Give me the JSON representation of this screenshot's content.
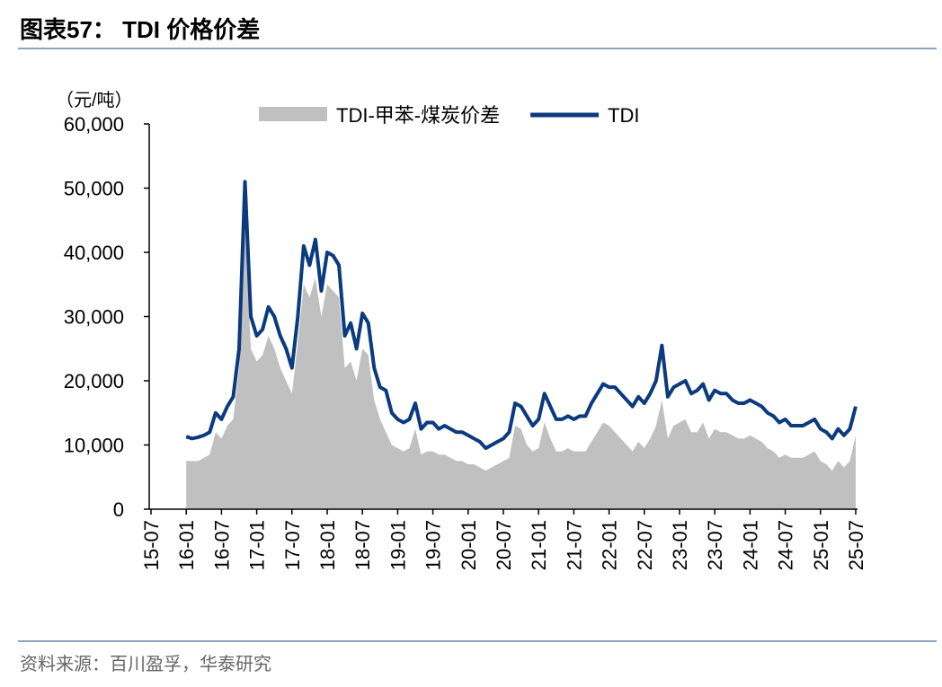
{
  "header": {
    "title": "图表57： TDI 价格价差"
  },
  "chart_data": {
    "type": "area-line",
    "y_label": "（元/吨）",
    "categories": [
      "15-07",
      null,
      null,
      null,
      null,
      null,
      "16-01",
      null,
      null,
      null,
      null,
      null,
      "16-07",
      null,
      null,
      null,
      null,
      null,
      "17-01",
      null,
      null,
      null,
      null,
      null,
      "17-07",
      null,
      null,
      null,
      null,
      null,
      "18-01",
      null,
      null,
      null,
      null,
      null,
      "18-07",
      null,
      null,
      null,
      null,
      null,
      "19-01",
      null,
      null,
      null,
      null,
      null,
      "19-07",
      null,
      null,
      null,
      null,
      null,
      "20-01",
      null,
      null,
      null,
      null,
      null,
      "20-07",
      null,
      null,
      null,
      null,
      null,
      "21-01",
      null,
      null,
      null,
      null,
      null,
      "21-07",
      null,
      null,
      null,
      null,
      null,
      "22-01",
      null,
      null,
      null,
      null,
      null,
      "22-07",
      null,
      null,
      null,
      null,
      null,
      "23-01",
      null,
      null,
      null,
      null,
      null,
      "23-07",
      null,
      null,
      null,
      null,
      null,
      "24-01",
      null,
      null,
      null,
      null,
      null,
      "24-07",
      null,
      null,
      null,
      null,
      null,
      "25-01",
      null,
      null,
      null,
      null,
      null,
      "25-07"
    ],
    "series": [
      {
        "name": "TDI-甲苯-煤炭价差",
        "color": "#c0c0c0",
        "kind": "area",
        "values": [
          null,
          null,
          null,
          null,
          null,
          null,
          7500,
          7500,
          7500,
          8000,
          8500,
          12000,
          11000,
          13000,
          14000,
          22000,
          45000,
          25000,
          23000,
          24000,
          27000,
          25000,
          22000,
          20000,
          18000,
          26000,
          35000,
          33000,
          36000,
          30000,
          35000,
          34000,
          33000,
          22000,
          23000,
          20000,
          25000,
          24000,
          17000,
          14000,
          12000,
          10000,
          9500,
          9000,
          9500,
          12500,
          8500,
          9000,
          9000,
          8500,
          8500,
          8000,
          7500,
          7500,
          7000,
          7000,
          6500,
          6000,
          6500,
          7000,
          7500,
          8000,
          13000,
          12500,
          10000,
          9000,
          9500,
          13500,
          11000,
          9000,
          9000,
          9500,
          9000,
          9000,
          9000,
          10500,
          12000,
          13500,
          13000,
          12000,
          11000,
          10000,
          9000,
          10500,
          9500,
          11000,
          13000,
          17000,
          11000,
          13000,
          13500,
          14000,
          12000,
          12000,
          13500,
          11000,
          12500,
          12000,
          12000,
          11500,
          11000,
          11000,
          11500,
          11000,
          10500,
          9500,
          9000,
          8000,
          8500,
          8000,
          8000,
          8000,
          8500,
          9000,
          7500,
          7000,
          6000,
          7500,
          6500,
          7500,
          11500
        ]
      },
      {
        "name": "TDI",
        "color": "#0b3a7e",
        "kind": "line",
        "values": [
          null,
          null,
          null,
          null,
          null,
          null,
          11300,
          11000,
          11200,
          11500,
          12000,
          15000,
          14000,
          16000,
          17500,
          25000,
          51000,
          30000,
          27000,
          28000,
          31500,
          30000,
          27000,
          25000,
          22000,
          30000,
          41000,
          38000,
          42000,
          34000,
          40000,
          39500,
          38000,
          27000,
          29000,
          25000,
          30500,
          29000,
          22000,
          19000,
          18500,
          15000,
          14000,
          13500,
          14000,
          16500,
          12500,
          13500,
          13500,
          12500,
          13000,
          12500,
          12000,
          12000,
          11500,
          11000,
          10500,
          9500,
          10000,
          10500,
          11000,
          12000,
          16500,
          16000,
          14500,
          13000,
          14000,
          18000,
          16000,
          14000,
          14000,
          14500,
          14000,
          14500,
          14500,
          16500,
          18000,
          19500,
          19000,
          19000,
          18000,
          17000,
          16000,
          17500,
          16500,
          18000,
          20000,
          25500,
          17500,
          19000,
          19500,
          20000,
          18000,
          18500,
          19500,
          17000,
          18500,
          18000,
          18000,
          17000,
          16500,
          16500,
          17000,
          16500,
          16000,
          15000,
          14500,
          13500,
          14000,
          13000,
          13000,
          13000,
          13500,
          14000,
          12500,
          12000,
          11000,
          12500,
          11500,
          12500,
          16000
        ]
      }
    ],
    "ylim": [
      0,
      60000
    ],
    "yticks": [
      0,
      {
        "value": 10000,
        "label": "10,000"
      },
      {
        "value": 20000,
        "label": "20,000"
      },
      {
        "value": 30000,
        "label": "30,000"
      },
      {
        "value": 40000,
        "label": "40,000"
      },
      {
        "value": 50000,
        "label": "50,000"
      },
      {
        "value": 60000,
        "label": "60,000"
      }
    ],
    "legend": "top"
  },
  "footer": {
    "source": "资料来源：百川盈孚，华泰研究"
  }
}
